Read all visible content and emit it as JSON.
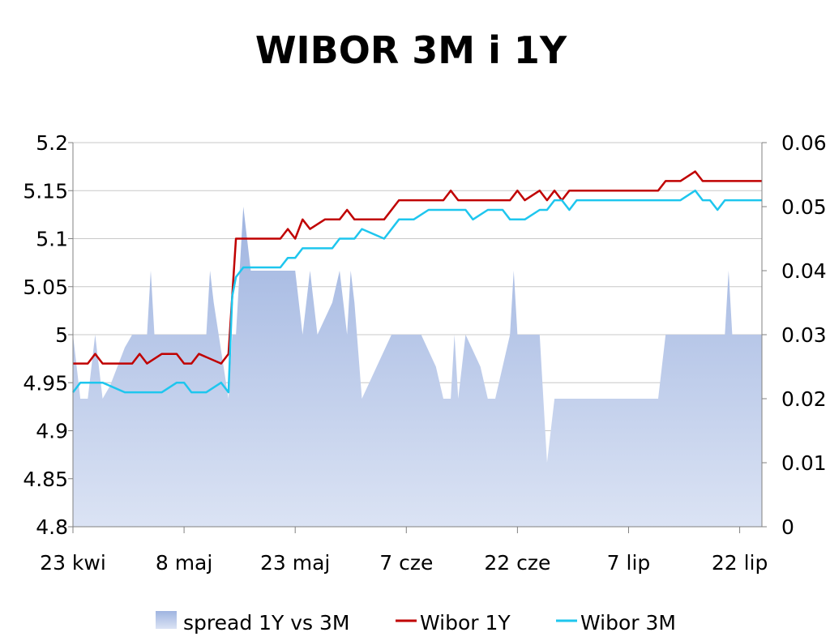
{
  "chart_data": {
    "type": "line",
    "title": "WIBOR 3M i 1Y",
    "xlabel": "",
    "ylabel": "",
    "y_left": {
      "min": 4.8,
      "max": 5.2,
      "ticks": [
        "5.2",
        "5.15",
        "5.1",
        "5.05",
        "5",
        "4.95",
        "4.9",
        "4.85",
        "4.8"
      ]
    },
    "y_right": {
      "min": 0,
      "max": 0.06,
      "ticks": [
        "0.06",
        "0.05",
        "0.04",
        "0.03",
        "0.02",
        "0.01",
        "0"
      ]
    },
    "x_ticks": [
      {
        "label": "23 kwi",
        "day": 0
      },
      {
        "label": "8 maj",
        "day": 15
      },
      {
        "label": "23 maj",
        "day": 30
      },
      {
        "label": "7 cze",
        "day": 45
      },
      {
        "label": "22 cze",
        "day": 60
      },
      {
        "label": "7 lip",
        "day": 75
      },
      {
        "label": "22 lip",
        "day": 90
      }
    ],
    "x_max_day": 93,
    "grid": true,
    "legend_position": "bottom",
    "colors": {
      "spread": "#9fb4e0",
      "spread_light": "#dbe3f4",
      "wibor_1y": "#c00000",
      "wibor_3m": "#1ec6ee"
    },
    "series": [
      {
        "name": "spread 1Y vs 3M",
        "type": "area",
        "axis": "right",
        "points": [
          [
            0,
            0.03
          ],
          [
            0.5,
            0.025
          ],
          [
            1,
            0.02
          ],
          [
            2,
            0.02
          ],
          [
            3,
            0.03
          ],
          [
            4,
            0.02
          ],
          [
            5,
            0.022
          ],
          [
            7,
            0.028
          ],
          [
            8,
            0.03
          ],
          [
            10,
            0.03
          ],
          [
            10.5,
            0.04
          ],
          [
            11,
            0.03
          ],
          [
            15,
            0.03
          ],
          [
            16,
            0.03
          ],
          [
            18,
            0.03
          ],
          [
            18.5,
            0.04
          ],
          [
            19,
            0.035
          ],
          [
            21,
            0.02
          ],
          [
            21.5,
            0.03
          ],
          [
            22,
            0.03
          ],
          [
            23,
            0.05
          ],
          [
            24,
            0.04
          ],
          [
            26,
            0.04
          ],
          [
            30,
            0.04
          ],
          [
            31,
            0.03
          ],
          [
            32,
            0.04
          ],
          [
            33,
            0.03
          ],
          [
            35,
            0.035
          ],
          [
            36,
            0.04
          ],
          [
            37,
            0.03
          ],
          [
            37.5,
            0.04
          ],
          [
            38,
            0.035
          ],
          [
            39,
            0.02
          ],
          [
            41,
            0.025
          ],
          [
            43,
            0.03
          ],
          [
            47,
            0.03
          ],
          [
            49,
            0.025
          ],
          [
            50,
            0.02
          ],
          [
            51,
            0.02
          ],
          [
            51.5,
            0.03
          ],
          [
            52,
            0.02
          ],
          [
            53,
            0.03
          ],
          [
            55,
            0.025
          ],
          [
            56,
            0.02
          ],
          [
            57,
            0.02
          ],
          [
            58,
            0.025
          ],
          [
            59,
            0.03
          ],
          [
            59.5,
            0.04
          ],
          [
            60,
            0.03
          ],
          [
            63,
            0.03
          ],
          [
            64,
            0.01
          ],
          [
            65,
            0.02
          ],
          [
            79,
            0.02
          ],
          [
            80,
            0.03
          ],
          [
            84,
            0.03
          ],
          [
            86,
            0.03
          ],
          [
            88,
            0.03
          ],
          [
            88.5,
            0.04
          ],
          [
            89,
            0.03
          ],
          [
            90,
            0.03
          ],
          [
            93,
            0.03
          ]
        ]
      },
      {
        "name": "Wibor 1Y",
        "type": "line",
        "axis": "left",
        "points": [
          [
            0,
            4.97
          ],
          [
            2,
            4.97
          ],
          [
            3,
            4.98
          ],
          [
            4,
            4.97
          ],
          [
            8,
            4.97
          ],
          [
            9,
            4.98
          ],
          [
            10,
            4.97
          ],
          [
            12,
            4.98
          ],
          [
            14,
            4.98
          ],
          [
            15,
            4.97
          ],
          [
            16,
            4.97
          ],
          [
            17,
            4.98
          ],
          [
            20,
            4.97
          ],
          [
            21,
            4.98
          ],
          [
            22,
            5.1
          ],
          [
            23,
            5.1
          ],
          [
            26,
            5.1
          ],
          [
            28,
            5.1
          ],
          [
            29,
            5.11
          ],
          [
            30,
            5.1
          ],
          [
            31,
            5.12
          ],
          [
            32,
            5.11
          ],
          [
            34,
            5.12
          ],
          [
            36,
            5.12
          ],
          [
            37,
            5.13
          ],
          [
            38,
            5.12
          ],
          [
            42,
            5.12
          ],
          [
            44,
            5.14
          ],
          [
            48,
            5.14
          ],
          [
            50,
            5.14
          ],
          [
            51,
            5.15
          ],
          [
            52,
            5.14
          ],
          [
            57,
            5.14
          ],
          [
            59,
            5.14
          ],
          [
            60,
            5.15
          ],
          [
            61,
            5.14
          ],
          [
            63,
            5.15
          ],
          [
            64,
            5.14
          ],
          [
            65,
            5.15
          ],
          [
            66,
            5.14
          ],
          [
            67,
            5.15
          ],
          [
            79,
            5.15
          ],
          [
            80,
            5.16
          ],
          [
            82,
            5.16
          ],
          [
            84,
            5.17
          ],
          [
            85,
            5.16
          ],
          [
            88,
            5.16
          ],
          [
            93,
            5.16
          ]
        ]
      },
      {
        "name": "Wibor 3M",
        "type": "line",
        "axis": "left",
        "points": [
          [
            0,
            4.94
          ],
          [
            1,
            4.95
          ],
          [
            4,
            4.95
          ],
          [
            7,
            4.94
          ],
          [
            10,
            4.94
          ],
          [
            12,
            4.94
          ],
          [
            14,
            4.95
          ],
          [
            15,
            4.95
          ],
          [
            16,
            4.94
          ],
          [
            18,
            4.94
          ],
          [
            20,
            4.95
          ],
          [
            21,
            4.94
          ],
          [
            21.5,
            5.04
          ],
          [
            22,
            5.06
          ],
          [
            23,
            5.07
          ],
          [
            28,
            5.07
          ],
          [
            29,
            5.08
          ],
          [
            30,
            5.08
          ],
          [
            31,
            5.09
          ],
          [
            33,
            5.09
          ],
          [
            35,
            5.09
          ],
          [
            36,
            5.1
          ],
          [
            38,
            5.1
          ],
          [
            39,
            5.11
          ],
          [
            42,
            5.1
          ],
          [
            44,
            5.12
          ],
          [
            46,
            5.12
          ],
          [
            48,
            5.13
          ],
          [
            50,
            5.13
          ],
          [
            53,
            5.13
          ],
          [
            54,
            5.12
          ],
          [
            56,
            5.13
          ],
          [
            58,
            5.13
          ],
          [
            59,
            5.12
          ],
          [
            61,
            5.12
          ],
          [
            63,
            5.13
          ],
          [
            64,
            5.13
          ],
          [
            65,
            5.14
          ],
          [
            66,
            5.14
          ],
          [
            67,
            5.13
          ],
          [
            68,
            5.14
          ],
          [
            80,
            5.14
          ],
          [
            82,
            5.14
          ],
          [
            84,
            5.15
          ],
          [
            85,
            5.14
          ],
          [
            86,
            5.14
          ],
          [
            87,
            5.13
          ],
          [
            88,
            5.14
          ],
          [
            93,
            5.14
          ]
        ]
      }
    ]
  }
}
